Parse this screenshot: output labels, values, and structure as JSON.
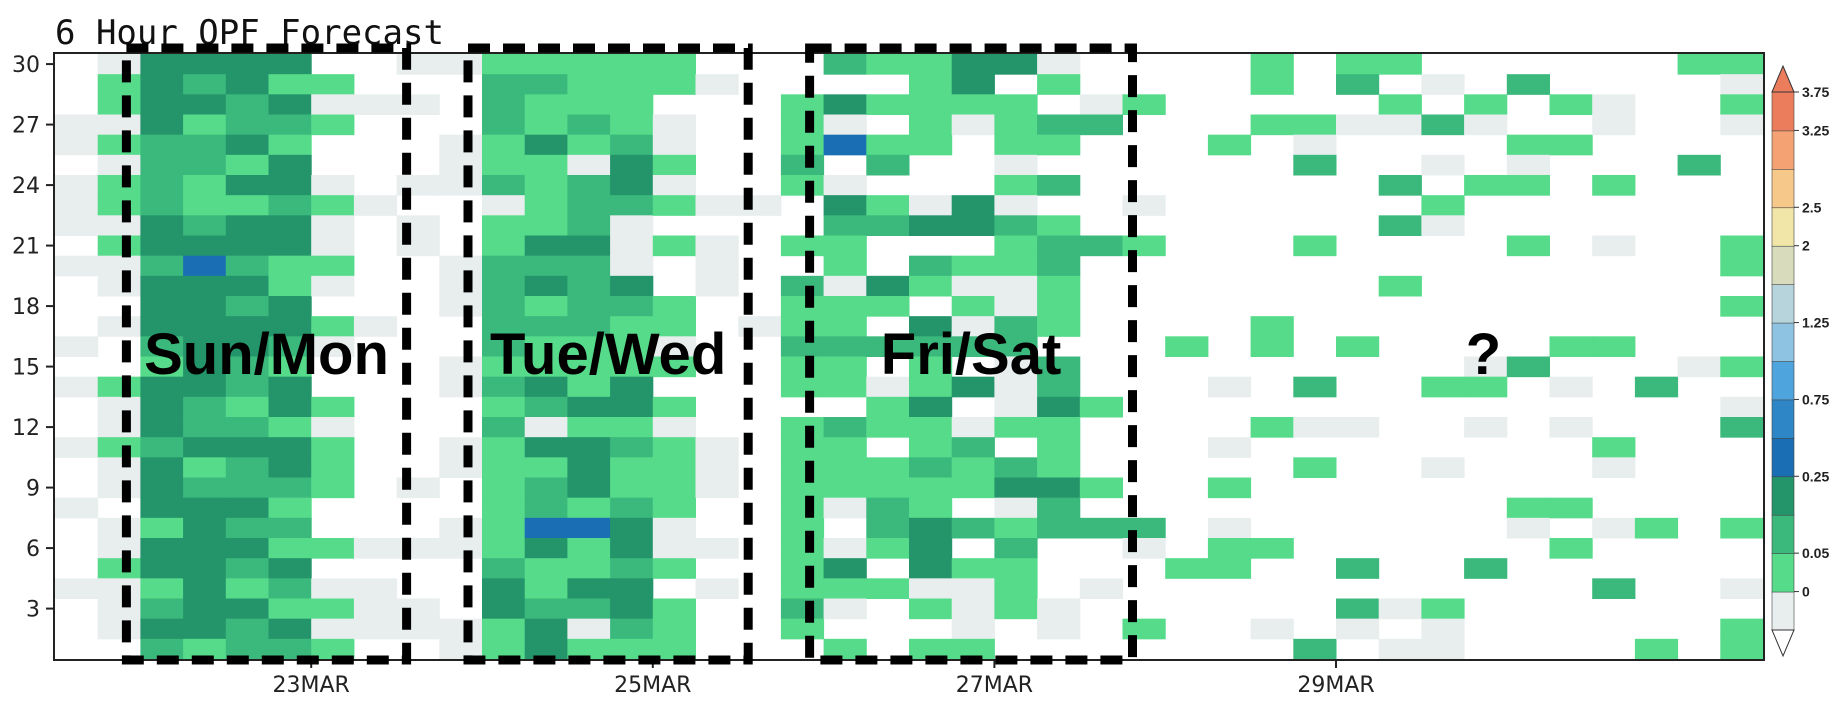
{
  "chart_data": {
    "type": "heatmap",
    "title": "6 Hour QPF Forecast",
    "x_tick_labels": [
      "23MAR",
      "25MAR",
      "27MAR",
      "29MAR"
    ],
    "y_tick_labels": [
      "30",
      "27",
      "24",
      "21",
      "18",
      "15",
      "12",
      "9",
      "6",
      "3"
    ],
    "colorbar": {
      "tick_labels": [
        "0",
        "0.05",
        "0.25",
        "0.75",
        "1.25",
        "2",
        "2.5",
        "3.25",
        "3.75"
      ],
      "colors": [
        "#e8eeee",
        "#55db8a",
        "#3bb97c",
        "#24946a",
        "#1a6fb4",
        "#2e86c6",
        "#4ea4dc",
        "#8ec4e2",
        "#b7d3dc",
        "#d8dcbc",
        "#f1e6a8",
        "#f6c88a",
        "#f4a274",
        "#ec7d5c"
      ]
    },
    "x_columns": 40,
    "y_members": 30,
    "annotations": [
      {
        "text": "Sun/Mon",
        "col_start": 2,
        "col_end": 7
      },
      {
        "text": "Tue/Wed",
        "col_start": 10,
        "col_end": 15
      },
      {
        "text": "Fri/Sat",
        "col_start": 18,
        "col_end": 24
      },
      {
        "text": "?",
        "col_start": 33,
        "col_end": 33
      }
    ]
  }
}
